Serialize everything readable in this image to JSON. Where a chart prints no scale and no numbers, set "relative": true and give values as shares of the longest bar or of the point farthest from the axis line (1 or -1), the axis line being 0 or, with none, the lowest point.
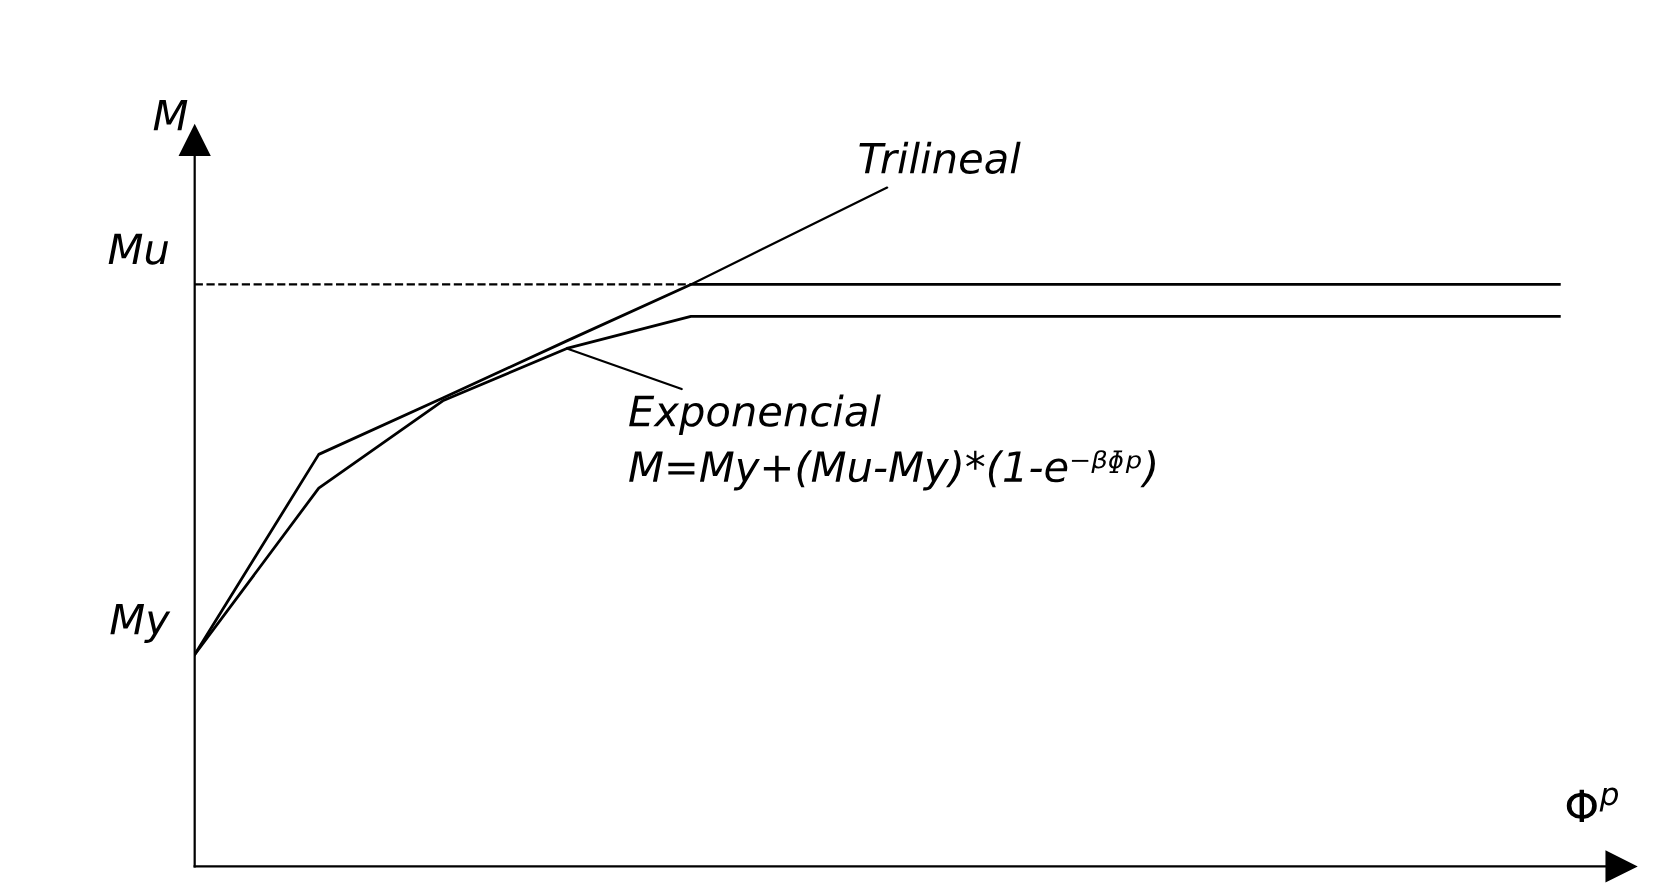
{
  "chart_data": {
    "type": "line",
    "relative": true,
    "ylabel": "M",
    "xlabel": "Φ$^{p}$",
    "categories": [
      null,
      null,
      null,
      null,
      null,
      null,
      null,
      null,
      null,
      null,
      null,
      null
    ],
    "series": [
      {
        "name": "Trilineal",
        "color": "#000000",
        "values": [
          0.364,
          0.708,
          0.805,
          0.903,
          1,
          1,
          1,
          1,
          1,
          1,
          1,
          1
        ]
      },
      {
        "name": "Exponencial",
        "color": "#000000",
        "values": [
          0.364,
          0.65,
          0.8,
          0.89,
          0.945,
          0.945,
          0.945,
          0.945,
          0.945,
          0.945,
          0.945,
          0.945
        ]
      }
    ],
    "ref_lines": [
      {
        "axis": "y",
        "value": 1,
        "label": "Mu",
        "line_style": "dashed",
        "color": "#000000"
      }
    ],
    "annotations": [
      "My",
      "M=My+(Mu-My)*(1-e⁻ᵝᶲᵖ)"
    ],
    "marker": "none",
    "line_style": "solid"
  }
}
